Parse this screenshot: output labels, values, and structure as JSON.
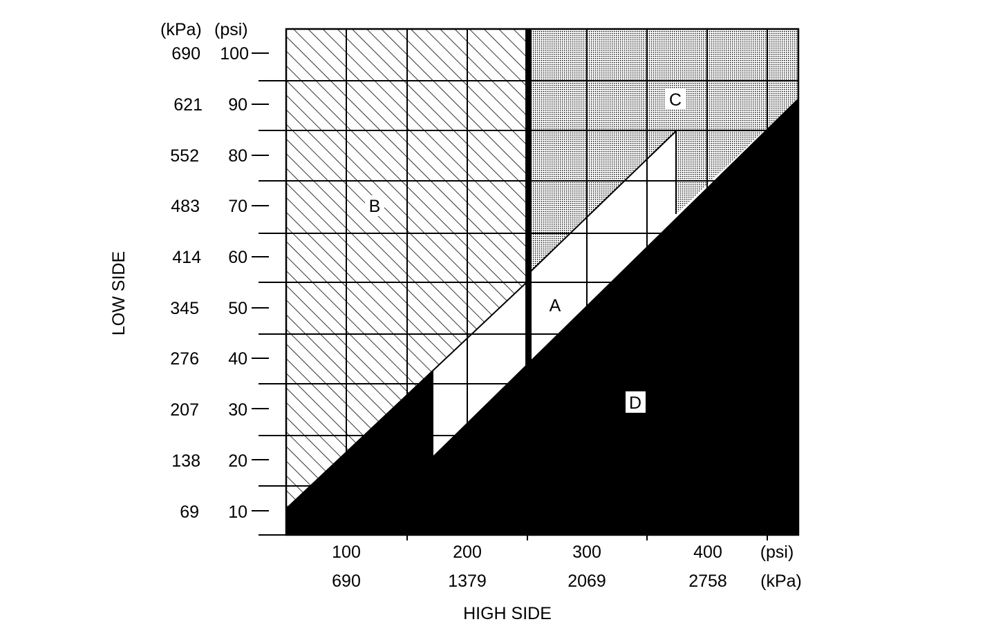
{
  "y_axis": {
    "title": "LOW SIDE",
    "unit_kpa": "(kPa)",
    "unit_psi": "(psi)",
    "ticks": [
      {
        "psi": "100",
        "kpa": "690"
      },
      {
        "psi": "90",
        "kpa": "621"
      },
      {
        "psi": "80",
        "kpa": "552"
      },
      {
        "psi": "70",
        "kpa": "483"
      },
      {
        "psi": "60",
        "kpa": "414"
      },
      {
        "psi": "50",
        "kpa": "345"
      },
      {
        "psi": "40",
        "kpa": "276"
      },
      {
        "psi": "30",
        "kpa": "207"
      },
      {
        "psi": "20",
        "kpa": "138"
      },
      {
        "psi": "10",
        "kpa": "69"
      }
    ]
  },
  "x_axis": {
    "title": "HIGH SIDE",
    "unit_psi": "(psi)",
    "unit_kpa": "(kPa)",
    "ticks": [
      {
        "psi": "100",
        "kpa": "690"
      },
      {
        "psi": "200",
        "kpa": "1379"
      },
      {
        "psi": "300",
        "kpa": "2069"
      },
      {
        "psi": "400",
        "kpa": "2758"
      }
    ]
  },
  "regions": {
    "a": "A",
    "b": "B",
    "c": "C",
    "d": "D"
  },
  "colors": {
    "ink": "#000000",
    "paper": "#ffffff"
  }
}
